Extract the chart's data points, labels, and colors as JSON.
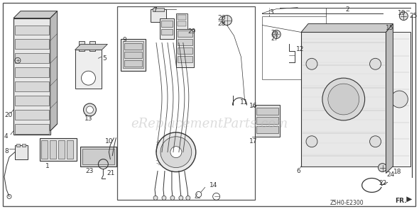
{
  "bg_color": "#f0f0f0",
  "border_color": "#333333",
  "dc": "#333333",
  "watermark_text": "eReplacementParts.com",
  "watermark_color": "#bbbbbb",
  "watermark_alpha": 0.5,
  "watermark_fontsize": 13,
  "code_text": "Z5H0-E2300",
  "fr_text": "FR.",
  "figsize": [
    5.9,
    2.95
  ],
  "dpi": 100
}
